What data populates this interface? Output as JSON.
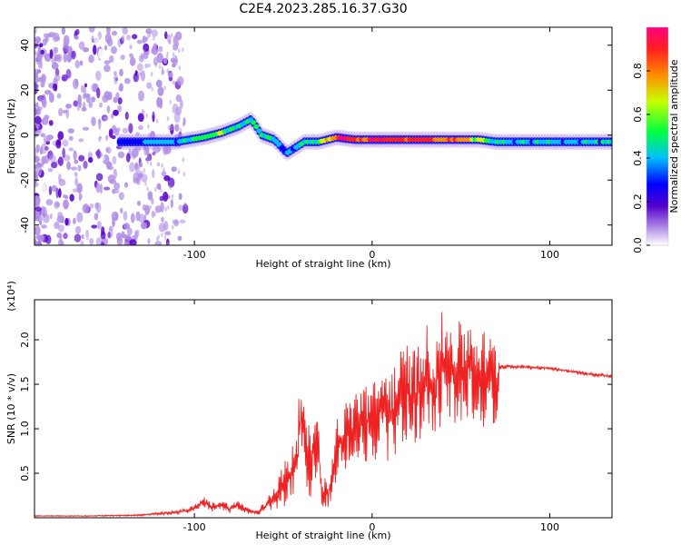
{
  "title": "C2E4.2023.285.16.37.G30",
  "chart_data": [
    {
      "type": "heatmap",
      "xlabel": "Height of straight line (km)",
      "ylabel": "Frequency (Hz)",
      "xlim": [
        -190,
        135
      ],
      "ylim": [
        -49,
        48
      ],
      "x_ticks": [
        -100,
        0,
        100
      ],
      "x_tick_labels": [
        "-100",
        "0",
        "100"
      ],
      "y_ticks": [
        -40,
        -20,
        0,
        20,
        40
      ],
      "y_tick_labels": [
        "-40",
        "-20",
        "0",
        "20",
        "40"
      ],
      "grid": false,
      "colorbar": {
        "label": "Normalized spectral amplitude",
        "range": [
          0,
          1
        ],
        "ticks": [
          0.0,
          0.2,
          0.4,
          0.6,
          0.8
        ],
        "tick_labels": [
          "0.0",
          "0.2",
          "0.4",
          "0.6",
          "0.8"
        ],
        "colormap": [
          "#ffffff",
          "#b18ee6",
          "#5500cc",
          "#0000ff",
          "#00bfff",
          "#00ff40",
          "#c8ff00",
          "#ff8c00",
          "#ff2020",
          "#ff0080"
        ]
      },
      "ridge": {
        "x": [
          -140,
          -125,
          -110,
          -95,
          -85,
          -75,
          -68,
          -62,
          -55,
          -48,
          -42,
          -38,
          -30,
          -20,
          -10,
          0,
          10,
          20,
          30,
          40,
          50,
          60,
          70,
          80,
          90,
          100,
          110,
          120,
          135
        ],
        "y": [
          -3,
          -3,
          -3,
          -1,
          1,
          4,
          7,
          0,
          -2,
          -8,
          -5,
          -3,
          -3,
          -1,
          -2,
          -2,
          -2,
          -2,
          -2,
          -2,
          -2,
          -2,
          -3,
          -3,
          -3,
          -3,
          -3,
          -3,
          -3
        ],
        "amplitude": [
          0.3,
          0.4,
          0.45,
          0.55,
          0.6,
          0.5,
          0.5,
          0.45,
          0.45,
          0.4,
          0.45,
          0.5,
          0.55,
          0.9,
          0.85,
          0.9,
          0.9,
          0.85,
          0.85,
          0.8,
          0.8,
          0.6,
          0.45,
          0.45,
          0.45,
          0.45,
          0.45,
          0.45,
          0.45
        ]
      }
    },
    {
      "type": "line",
      "xlabel": "Height of straight line (km)",
      "ylabel": "SNR (10 * v/v)",
      "y_multiplier_label": "(x10⁴)",
      "xlim": [
        -190,
        135
      ],
      "ylim": [
        0,
        2.45
      ],
      "x_ticks": [
        -100,
        0,
        100
      ],
      "x_tick_labels": [
        "-100",
        "0",
        "100"
      ],
      "y_ticks": [
        0.5,
        1.0,
        1.5,
        2.0
      ],
      "y_tick_labels": [
        "0.5",
        "1.0",
        "1.5",
        "2.0"
      ],
      "grid": false,
      "series": [
        {
          "color": "#ee2222",
          "x": [
            -190,
            -160,
            -130,
            -110,
            -100,
            -95,
            -90,
            -85,
            -80,
            -75,
            -70,
            -65,
            -60,
            -55,
            -50,
            -45,
            -42,
            -40,
            -38,
            -35,
            -32,
            -30,
            -28,
            -25,
            -22,
            -20,
            -15,
            -10,
            -5,
            0,
            5,
            10,
            15,
            20,
            25,
            30,
            35,
            40,
            45,
            50,
            55,
            60,
            65,
            70,
            72,
            80,
            90,
            100,
            110,
            120,
            135
          ],
          "y": [
            0.02,
            0.02,
            0.03,
            0.06,
            0.1,
            0.18,
            0.12,
            0.15,
            0.1,
            0.14,
            0.08,
            0.05,
            0.12,
            0.25,
            0.35,
            0.5,
            0.7,
            1.2,
            0.8,
            0.6,
            0.9,
            0.7,
            0.3,
            0.25,
            0.5,
            0.8,
            0.9,
            1.0,
            1.1,
            1.05,
            1.2,
            1.15,
            1.3,
            1.4,
            1.35,
            1.6,
            1.5,
            1.7,
            1.65,
            1.6,
            1.7,
            1.6,
            1.55,
            1.5,
            1.7,
            1.7,
            1.69,
            1.68,
            1.65,
            1.62,
            1.59
          ],
          "spread": [
            0.005,
            0.005,
            0.01,
            0.02,
            0.04,
            0.06,
            0.05,
            0.06,
            0.05,
            0.06,
            0.04,
            0.03,
            0.08,
            0.15,
            0.25,
            0.4,
            0.45,
            0.45,
            0.4,
            0.4,
            0.45,
            0.35,
            0.2,
            0.15,
            0.25,
            0.35,
            0.4,
            0.45,
            0.5,
            0.45,
            0.5,
            0.55,
            0.55,
            0.6,
            0.55,
            0.6,
            0.6,
            0.65,
            0.6,
            0.6,
            0.6,
            0.55,
            0.55,
            0.5,
            0.03,
            0.02,
            0.02,
            0.02,
            0.02,
            0.02,
            0.02
          ]
        }
      ]
    }
  ]
}
